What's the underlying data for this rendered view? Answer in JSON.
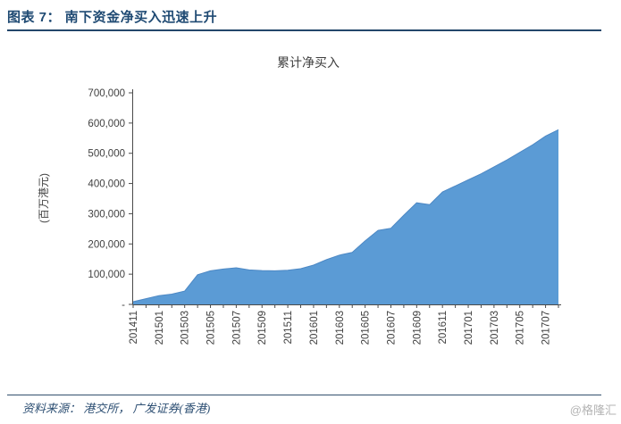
{
  "header": {
    "title": "图表 7： 南下资金净买入迅速上升"
  },
  "footer": {
    "source": "资料来源： 港交所， 广发证券(香港)",
    "watermark": "@格隆汇"
  },
  "colors": {
    "header_navy": "#1f4a73",
    "area_fill": "#5b9bd5",
    "area_edge": "#4d88c4",
    "axis": "#4a4a4a",
    "tick_label": "#404040",
    "watermark_gray": "#b3b3b3"
  },
  "chart_data": {
    "type": "area",
    "title": "累计净买入",
    "xlabel": "",
    "ylabel": "(百万港元)",
    "series_name": "累计净买入",
    "x": [
      "201411",
      "201412",
      "201501",
      "201502",
      "201503",
      "201504",
      "201505",
      "201506",
      "201507",
      "201508",
      "201509",
      "201510",
      "201511",
      "201512",
      "201601",
      "201602",
      "201603",
      "201604",
      "201605",
      "201606",
      "201607",
      "201608",
      "201609",
      "201610",
      "201611",
      "201612",
      "201701",
      "201702",
      "201703",
      "201704",
      "201705",
      "201706",
      "201707",
      "201708"
    ],
    "values": [
      9000,
      19000,
      29000,
      34000,
      44000,
      98000,
      111000,
      117000,
      121000,
      114000,
      112000,
      111000,
      113000,
      118000,
      130000,
      148000,
      163000,
      172000,
      210000,
      245000,
      252000,
      295000,
      336000,
      330000,
      372000,
      392000,
      412000,
      432000,
      455000,
      478000,
      503000,
      528000,
      557000,
      578000
    ],
    "x_tick_label_every": 2,
    "x_tick_labels_shown": [
      "201411",
      "201501",
      "201503",
      "201505",
      "201507",
      "201509",
      "201511",
      "201601",
      "201603",
      "201605",
      "201607",
      "201609",
      "201611",
      "201701",
      "201703",
      "201705",
      "201707"
    ],
    "ylim": [
      0,
      700000
    ],
    "y_ticks": [
      0,
      100000,
      200000,
      300000,
      400000,
      500000,
      600000,
      700000
    ],
    "y_tick_labels": [
      "-",
      "100,000",
      "200,000",
      "300,000",
      "400,000",
      "500,000",
      "600,000",
      "700,000"
    ],
    "grid": "off",
    "legend": "none",
    "fill_color": "#5b9bd5",
    "edge_color": "#4d88c4"
  }
}
